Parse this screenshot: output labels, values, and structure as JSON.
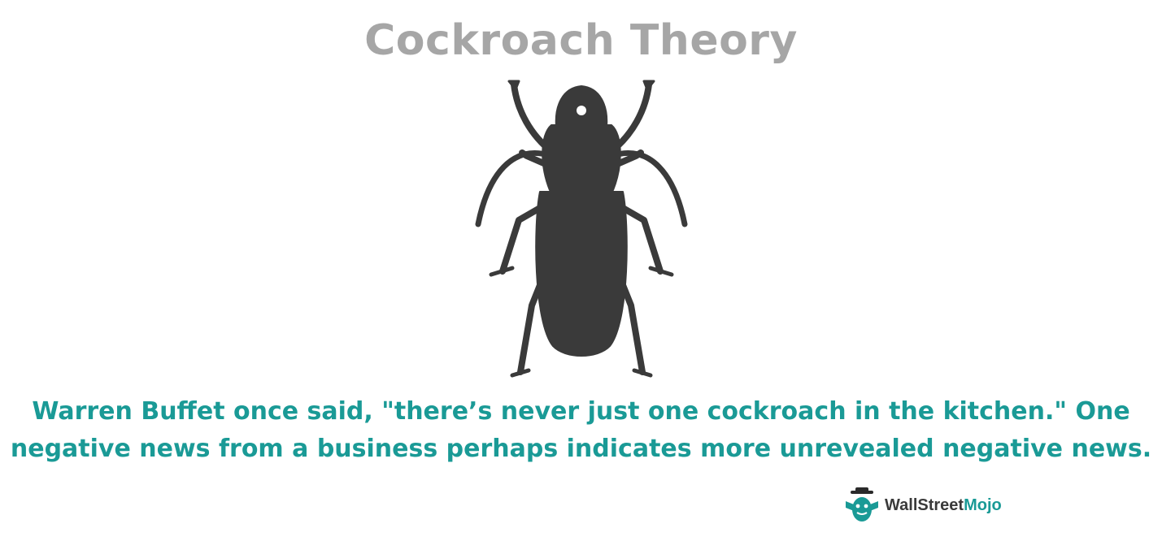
{
  "title": "Cockroach Theory",
  "illustration": {
    "icon": "beetle-silhouette-icon",
    "color": "#3a3a3a"
  },
  "caption": {
    "line1": "Warren Buffet once said, \"there’s never just one cockroach in the kitchen.\" One",
    "line2": "negative news from a business perhaps indicates more unrevealed negative news."
  },
  "brand": {
    "logo_icon": "wallstreetmojo-logo-icon",
    "name_part1": "WallStreet",
    "name_part2": "Mojo"
  },
  "colors": {
    "title": "#a6a6a6",
    "caption": "#1a9a96",
    "silhouette": "#3a3a3a",
    "brand_accent": "#1a9a96"
  }
}
